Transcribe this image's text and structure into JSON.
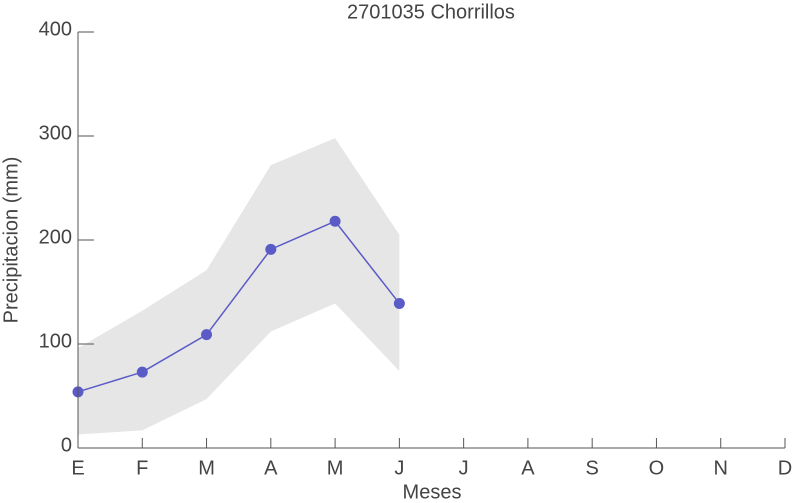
{
  "chart_data": {
    "type": "line",
    "title": "2701035 Chorrillos",
    "x_label": "Meses",
    "y_label": "Precipitacion (mm)",
    "categories": [
      "E",
      "F",
      "M",
      "A",
      "M",
      "J",
      "J",
      "A",
      "S",
      "O",
      "N",
      "D"
    ],
    "values": [
      54,
      73,
      109,
      191,
      218,
      139,
      null,
      null,
      null,
      null,
      null,
      null
    ],
    "band_upper": [
      96,
      132,
      171,
      272,
      298,
      205,
      null,
      null,
      null,
      null,
      null,
      null
    ],
    "band_lower": [
      13,
      17,
      47,
      112,
      139,
      74,
      null,
      null,
      null,
      null,
      null,
      null
    ],
    "color": "#5b5bc8",
    "band_color": "#e6e6e6",
    "ylim": [
      0,
      400
    ],
    "yticks": [
      0,
      100,
      200,
      300,
      400
    ]
  }
}
